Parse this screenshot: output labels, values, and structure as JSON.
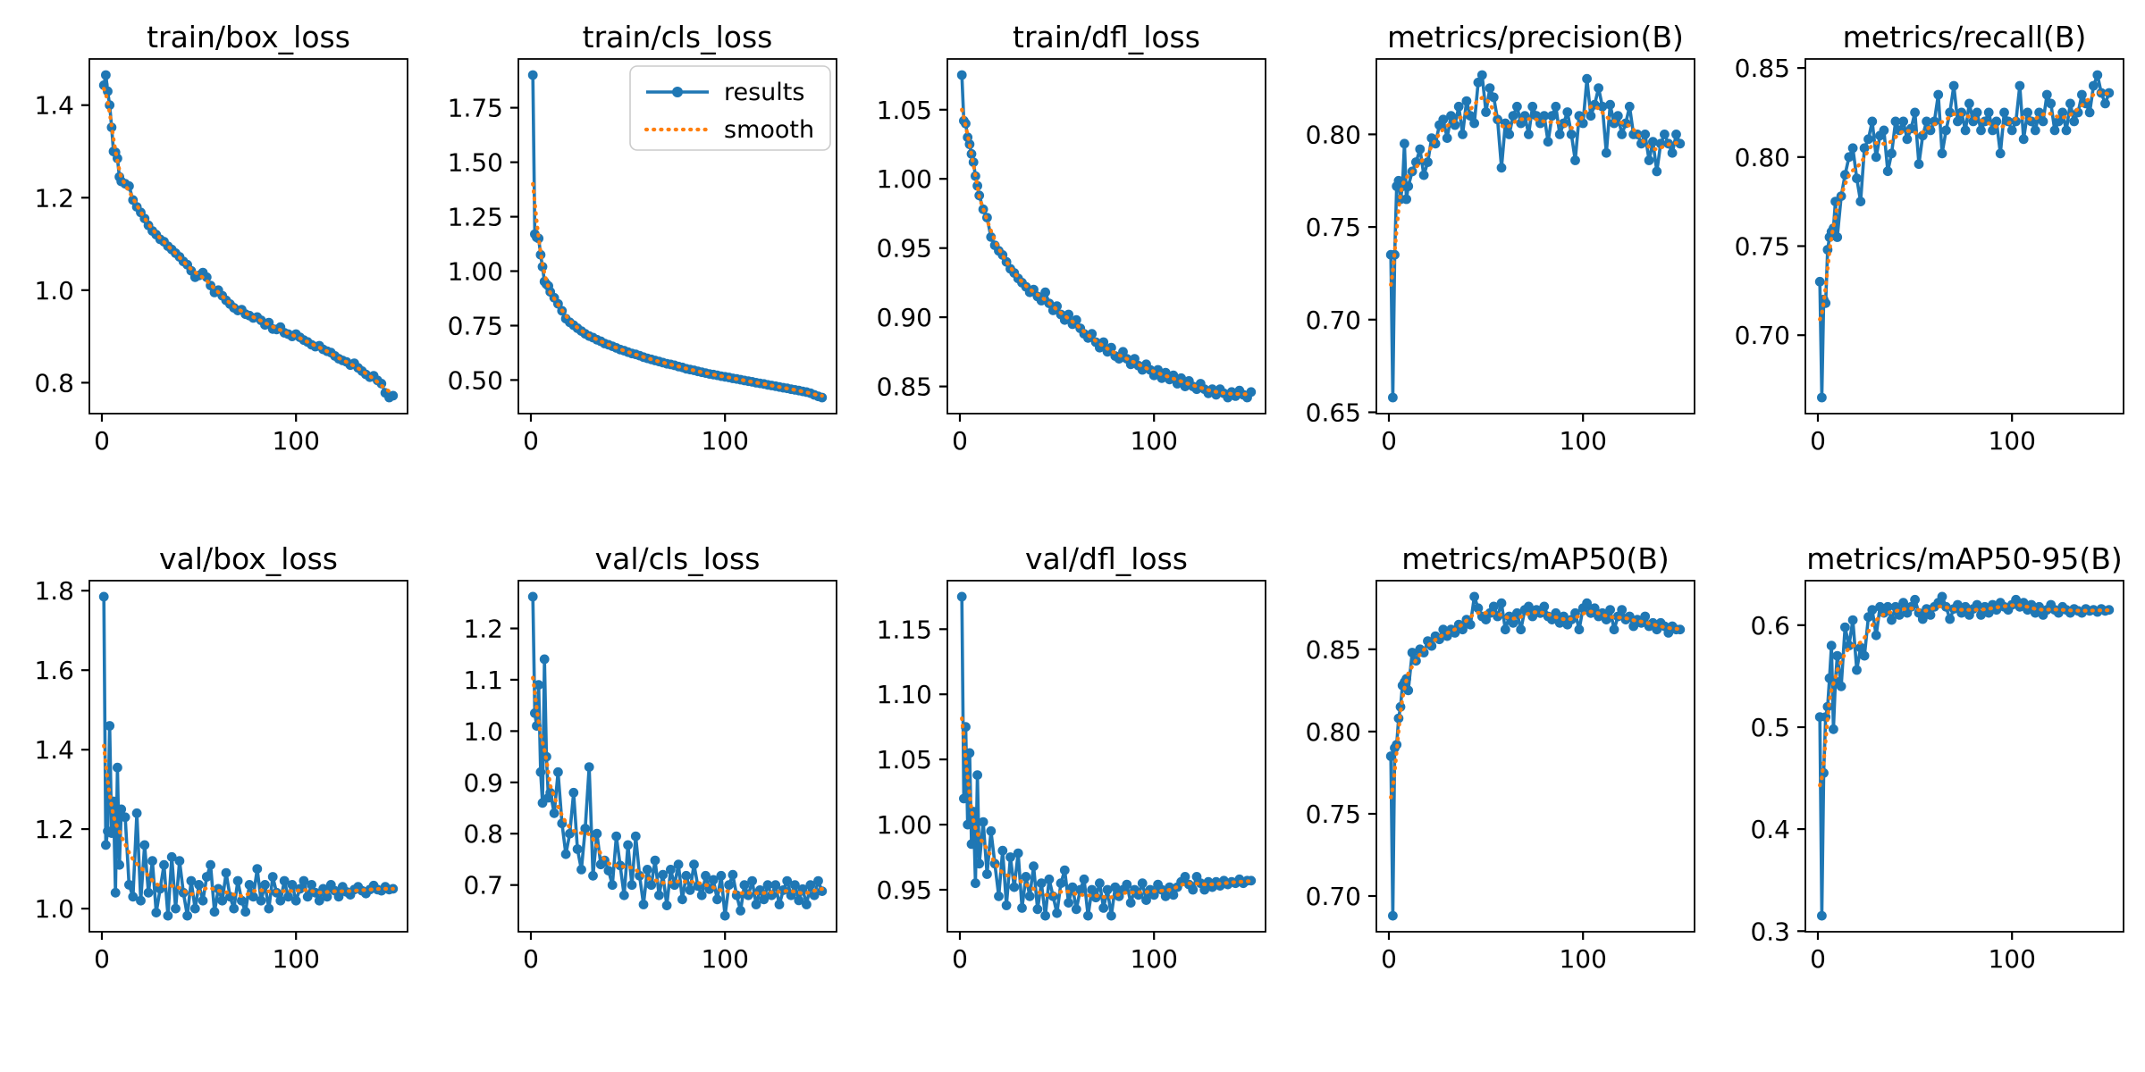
{
  "figure": {
    "type": "training-results-grid",
    "rows": 2,
    "cols": 5,
    "background": "#ffffff",
    "legend": {
      "location": "upper-right of train/cls_loss subplot",
      "entries": [
        {
          "label": "results",
          "style": "solid line with dot marker",
          "color": "#1f77b4"
        },
        {
          "label": "smooth",
          "style": "dotted line",
          "color": "#ff7f0e"
        }
      ]
    }
  },
  "style": {
    "results_color": "#1f77b4",
    "smooth_color": "#ff7f0e",
    "axis_color": "#000000",
    "legend_border": "#cccccc"
  },
  "smoothing": {
    "method": "gaussian_filter1d",
    "sigma_epochs": 3,
    "sigma_samples": 2
  },
  "xticks": {
    "values": [
      0,
      100
    ],
    "labels": [
      "0",
      "100"
    ]
  },
  "x_epochs": [
    1,
    2,
    3,
    4,
    5,
    6,
    7,
    8,
    9,
    10,
    12,
    14,
    16,
    18,
    20,
    22,
    24,
    26,
    28,
    30,
    32,
    34,
    36,
    38,
    40,
    42,
    44,
    46,
    48,
    50,
    52,
    54,
    56,
    58,
    60,
    62,
    64,
    66,
    68,
    70,
    72,
    74,
    76,
    78,
    80,
    82,
    84,
    86,
    88,
    90,
    92,
    94,
    96,
    98,
    100,
    102,
    104,
    106,
    108,
    110,
    112,
    114,
    116,
    118,
    120,
    122,
    124,
    126,
    128,
    130,
    132,
    134,
    136,
    138,
    140,
    142,
    144,
    146,
    148,
    150
  ],
  "chart_data": [
    {
      "type": "line",
      "title": "train/box_loss",
      "legend": false,
      "ytick_values": [
        0.8,
        1.0,
        1.2,
        1.4
      ],
      "ytick_labels": [
        "0.8",
        "1.0",
        "1.2",
        "1.4"
      ],
      "results": [
        1.443,
        1.465,
        1.43,
        1.4,
        1.352,
        1.3,
        1.298,
        1.285,
        1.245,
        1.235,
        1.23,
        1.225,
        1.195,
        1.18,
        1.168,
        1.155,
        1.14,
        1.128,
        1.12,
        1.11,
        1.105,
        1.095,
        1.088,
        1.08,
        1.072,
        1.062,
        1.055,
        1.042,
        1.028,
        1.032,
        1.038,
        1.028,
        1.01,
        0.995,
        1.0,
        0.988,
        0.978,
        0.97,
        0.962,
        0.956,
        0.958,
        0.948,
        0.945,
        0.94,
        0.942,
        0.935,
        0.925,
        0.93,
        0.916,
        0.915,
        0.92,
        0.908,
        0.905,
        0.9,
        0.905,
        0.898,
        0.892,
        0.888,
        0.882,
        0.878,
        0.88,
        0.872,
        0.868,
        0.865,
        0.858,
        0.852,
        0.848,
        0.845,
        0.838,
        0.842,
        0.832,
        0.825,
        0.818,
        0.812,
        0.815,
        0.805,
        0.798,
        0.778,
        0.768,
        0.772
      ]
    },
    {
      "type": "line",
      "title": "train/cls_loss",
      "legend": true,
      "ytick_values": [
        0.5,
        0.75,
        1.0,
        1.25,
        1.5,
        1.75
      ],
      "ytick_labels": [
        "0.50",
        "0.75",
        "1.00",
        "1.25",
        "1.50",
        "1.75"
      ],
      "results": [
        1.9,
        1.17,
        1.155,
        1.15,
        1.075,
        1.02,
        0.952,
        0.94,
        0.932,
        0.905,
        0.878,
        0.85,
        0.818,
        0.782,
        0.765,
        0.752,
        0.738,
        0.725,
        0.712,
        0.702,
        0.695,
        0.685,
        0.678,
        0.668,
        0.662,
        0.655,
        0.648,
        0.64,
        0.635,
        0.628,
        0.622,
        0.618,
        0.612,
        0.605,
        0.6,
        0.595,
        0.59,
        0.585,
        0.58,
        0.575,
        0.572,
        0.568,
        0.562,
        0.558,
        0.552,
        0.548,
        0.545,
        0.54,
        0.536,
        0.532,
        0.528,
        0.525,
        0.522,
        0.518,
        0.515,
        0.512,
        0.508,
        0.505,
        0.502,
        0.498,
        0.495,
        0.492,
        0.488,
        0.485,
        0.482,
        0.478,
        0.475,
        0.472,
        0.468,
        0.465,
        0.462,
        0.458,
        0.455,
        0.452,
        0.448,
        0.445,
        0.44,
        0.432,
        0.425,
        0.42
      ]
    },
    {
      "type": "line",
      "title": "train/dfl_loss",
      "legend": false,
      "ytick_values": [
        0.85,
        0.9,
        0.95,
        1.0,
        1.05
      ],
      "ytick_labels": [
        "0.85",
        "0.90",
        "0.95",
        "1.00",
        "1.05"
      ],
      "results": [
        1.075,
        1.042,
        1.04,
        1.03,
        1.025,
        1.018,
        1.012,
        1.002,
        0.995,
        0.988,
        0.978,
        0.972,
        0.958,
        0.952,
        0.948,
        0.945,
        0.94,
        0.935,
        0.932,
        0.928,
        0.925,
        0.922,
        0.918,
        0.92,
        0.915,
        0.912,
        0.918,
        0.91,
        0.905,
        0.908,
        0.902,
        0.898,
        0.902,
        0.895,
        0.898,
        0.892,
        0.888,
        0.885,
        0.888,
        0.882,
        0.878,
        0.882,
        0.875,
        0.878,
        0.872,
        0.87,
        0.875,
        0.87,
        0.866,
        0.87,
        0.865,
        0.862,
        0.866,
        0.862,
        0.858,
        0.862,
        0.856,
        0.86,
        0.855,
        0.858,
        0.852,
        0.856,
        0.85,
        0.854,
        0.85,
        0.848,
        0.852,
        0.848,
        0.845,
        0.848,
        0.844,
        0.848,
        0.845,
        0.842,
        0.846,
        0.843,
        0.847,
        0.844,
        0.842,
        0.846
      ]
    },
    {
      "type": "line",
      "title": "metrics/precision(B)",
      "legend": false,
      "ytick_values": [
        0.65,
        0.7,
        0.75,
        0.8
      ],
      "ytick_labels": [
        "0.65",
        "0.70",
        "0.75",
        "0.80"
      ],
      "results": [
        0.735,
        0.658,
        0.735,
        0.772,
        0.775,
        0.765,
        0.772,
        0.795,
        0.765,
        0.772,
        0.78,
        0.785,
        0.792,
        0.778,
        0.785,
        0.798,
        0.795,
        0.805,
        0.808,
        0.798,
        0.81,
        0.805,
        0.815,
        0.8,
        0.818,
        0.81,
        0.806,
        0.828,
        0.832,
        0.812,
        0.825,
        0.82,
        0.808,
        0.782,
        0.806,
        0.8,
        0.81,
        0.815,
        0.806,
        0.81,
        0.8,
        0.815,
        0.81,
        0.806,
        0.81,
        0.796,
        0.81,
        0.815,
        0.8,
        0.806,
        0.812,
        0.8,
        0.786,
        0.81,
        0.806,
        0.83,
        0.81,
        0.816,
        0.825,
        0.815,
        0.79,
        0.816,
        0.806,
        0.81,
        0.8,
        0.806,
        0.815,
        0.8,
        0.8,
        0.795,
        0.8,
        0.786,
        0.796,
        0.78,
        0.795,
        0.8,
        0.795,
        0.79,
        0.8,
        0.795
      ]
    },
    {
      "type": "line",
      "title": "metrics/recall(B)",
      "legend": false,
      "ytick_values": [
        0.7,
        0.75,
        0.8,
        0.85
      ],
      "ytick_labels": [
        "0.70",
        "0.75",
        "0.80",
        "0.85"
      ],
      "results": [
        0.73,
        0.665,
        0.72,
        0.718,
        0.748,
        0.755,
        0.758,
        0.76,
        0.775,
        0.755,
        0.778,
        0.79,
        0.8,
        0.805,
        0.788,
        0.775,
        0.805,
        0.81,
        0.82,
        0.8,
        0.812,
        0.815,
        0.792,
        0.802,
        0.82,
        0.815,
        0.82,
        0.81,
        0.816,
        0.825,
        0.796,
        0.812,
        0.82,
        0.815,
        0.82,
        0.835,
        0.802,
        0.815,
        0.825,
        0.84,
        0.82,
        0.825,
        0.815,
        0.83,
        0.82,
        0.825,
        0.815,
        0.82,
        0.825,
        0.815,
        0.82,
        0.802,
        0.825,
        0.82,
        0.815,
        0.82,
        0.84,
        0.81,
        0.825,
        0.82,
        0.815,
        0.825,
        0.82,
        0.835,
        0.83,
        0.815,
        0.82,
        0.825,
        0.815,
        0.83,
        0.82,
        0.825,
        0.835,
        0.83,
        0.825,
        0.84,
        0.846,
        0.836,
        0.83,
        0.836
      ]
    },
    {
      "type": "line",
      "title": "val/box_loss",
      "legend": false,
      "ytick_values": [
        1.0,
        1.2,
        1.4,
        1.6,
        1.8
      ],
      "ytick_labels": [
        "1.0",
        "1.2",
        "1.4",
        "1.6",
        "1.8"
      ],
      "results": [
        1.785,
        1.16,
        1.195,
        1.46,
        1.19,
        1.27,
        1.04,
        1.355,
        1.11,
        1.25,
        1.23,
        1.06,
        1.03,
        1.24,
        1.02,
        1.16,
        1.04,
        1.12,
        0.99,
        1.05,
        1.11,
        0.982,
        1.13,
        1.0,
        1.12,
        1.04,
        0.982,
        1.07,
        1.0,
        1.06,
        1.02,
        1.08,
        1.11,
        0.992,
        1.05,
        1.02,
        1.09,
        1.03,
        1.0,
        1.07,
        1.02,
        0.992,
        1.06,
        1.03,
        1.1,
        1.02,
        1.06,
        1.0,
        1.08,
        1.04,
        1.02,
        1.07,
        1.03,
        1.06,
        1.02,
        1.05,
        1.07,
        1.03,
        1.06,
        1.04,
        1.02,
        1.05,
        1.03,
        1.06,
        1.045,
        1.03,
        1.055,
        1.042,
        1.035,
        1.048,
        1.055,
        1.045,
        1.038,
        1.048,
        1.058,
        1.048,
        1.045,
        1.055,
        1.048,
        1.05
      ]
    },
    {
      "type": "line",
      "title": "val/cls_loss",
      "legend": false,
      "ytick_values": [
        0.7,
        0.8,
        0.9,
        1.0,
        1.1,
        1.2
      ],
      "ytick_labels": [
        "0.7",
        "0.8",
        "0.9",
        "1.0",
        "1.1",
        "1.2"
      ],
      "results": [
        1.262,
        1.035,
        1.01,
        1.09,
        0.92,
        0.86,
        1.14,
        0.95,
        0.87,
        0.88,
        0.84,
        0.92,
        0.82,
        0.76,
        0.8,
        0.88,
        0.77,
        0.73,
        0.81,
        0.93,
        0.718,
        0.8,
        0.74,
        0.748,
        0.728,
        0.7,
        0.795,
        0.738,
        0.68,
        0.778,
        0.7,
        0.795,
        0.718,
        0.662,
        0.73,
        0.7,
        0.748,
        0.68,
        0.72,
        0.66,
        0.73,
        0.7,
        0.74,
        0.672,
        0.718,
        0.69,
        0.74,
        0.698,
        0.68,
        0.718,
        0.692,
        0.71,
        0.672,
        0.718,
        0.64,
        0.7,
        0.72,
        0.68,
        0.65,
        0.7,
        0.68,
        0.708,
        0.662,
        0.69,
        0.672,
        0.7,
        0.68,
        0.7,
        0.662,
        0.69,
        0.708,
        0.68,
        0.7,
        0.67,
        0.692,
        0.662,
        0.7,
        0.68,
        0.708,
        0.688
      ]
    },
    {
      "type": "line",
      "title": "val/dfl_loss",
      "legend": false,
      "ytick_values": [
        0.95,
        1.0,
        1.05,
        1.1,
        1.15
      ],
      "ytick_labels": [
        "0.95",
        "1.00",
        "1.05",
        "1.10",
        "1.15"
      ],
      "results": [
        1.175,
        1.02,
        1.075,
        1.0,
        1.055,
        0.985,
        1.01,
        0.955,
        1.038,
        0.97,
        1.002,
        0.962,
        0.995,
        0.97,
        0.945,
        0.98,
        0.938,
        0.975,
        0.952,
        0.978,
        0.936,
        0.96,
        0.945,
        0.968,
        0.935,
        0.955,
        0.93,
        0.958,
        0.945,
        0.932,
        0.955,
        0.965,
        0.94,
        0.952,
        0.935,
        0.95,
        0.958,
        0.93,
        0.95,
        0.944,
        0.955,
        0.936,
        0.95,
        0.93,
        0.952,
        0.945,
        0.95,
        0.954,
        0.94,
        0.95,
        0.946,
        0.955,
        0.942,
        0.95,
        0.946,
        0.954,
        0.95,
        0.945,
        0.952,
        0.946,
        0.952,
        0.956,
        0.96,
        0.954,
        0.95,
        0.96,
        0.955,
        0.95,
        0.956,
        0.952,
        0.956,
        0.953,
        0.957,
        0.954,
        0.956,
        0.955,
        0.958,
        0.955,
        0.957,
        0.957
      ]
    },
    {
      "type": "line",
      "title": "metrics/mAP50(B)",
      "legend": false,
      "ytick_values": [
        0.7,
        0.75,
        0.8,
        0.85
      ],
      "ytick_labels": [
        "0.70",
        "0.75",
        "0.80",
        "0.85"
      ],
      "results": [
        0.785,
        0.688,
        0.79,
        0.792,
        0.808,
        0.815,
        0.828,
        0.83,
        0.832,
        0.825,
        0.848,
        0.843,
        0.85,
        0.848,
        0.855,
        0.852,
        0.858,
        0.856,
        0.862,
        0.858,
        0.862,
        0.86,
        0.865,
        0.862,
        0.868,
        0.865,
        0.882,
        0.875,
        0.87,
        0.868,
        0.872,
        0.876,
        0.87,
        0.878,
        0.862,
        0.87,
        0.866,
        0.872,
        0.862,
        0.874,
        0.876,
        0.87,
        0.874,
        0.872,
        0.876,
        0.87,
        0.868,
        0.872,
        0.866,
        0.87,
        0.865,
        0.868,
        0.872,
        0.862,
        0.875,
        0.878,
        0.872,
        0.875,
        0.87,
        0.872,
        0.868,
        0.874,
        0.862,
        0.87,
        0.874,
        0.868,
        0.87,
        0.864,
        0.868,
        0.866,
        0.87,
        0.864,
        0.866,
        0.862,
        0.866,
        0.864,
        0.86,
        0.864,
        0.862,
        0.862
      ]
    },
    {
      "type": "line",
      "title": "metrics/mAP50-95(B)",
      "legend": false,
      "ytick_values": [
        0.3,
        0.4,
        0.5,
        0.6
      ],
      "ytick_labels": [
        "0.3",
        "0.4",
        "0.5",
        "0.6"
      ],
      "results": [
        0.51,
        0.315,
        0.455,
        0.51,
        0.52,
        0.548,
        0.58,
        0.498,
        0.545,
        0.57,
        0.54,
        0.598,
        0.58,
        0.605,
        0.556,
        0.578,
        0.57,
        0.608,
        0.615,
        0.59,
        0.618,
        0.612,
        0.618,
        0.605,
        0.618,
        0.61,
        0.622,
        0.612,
        0.618,
        0.625,
        0.612,
        0.606,
        0.616,
        0.61,
        0.618,
        0.622,
        0.628,
        0.618,
        0.606,
        0.616,
        0.62,
        0.612,
        0.618,
        0.61,
        0.616,
        0.62,
        0.61,
        0.618,
        0.612,
        0.62,
        0.615,
        0.622,
        0.618,
        0.615,
        0.62,
        0.625,
        0.618,
        0.622,
        0.615,
        0.62,
        0.612,
        0.618,
        0.61,
        0.615,
        0.62,
        0.615,
        0.612,
        0.618,
        0.615,
        0.612,
        0.616,
        0.614,
        0.612,
        0.616,
        0.614,
        0.615,
        0.613,
        0.616,
        0.614,
        0.615
      ]
    }
  ]
}
